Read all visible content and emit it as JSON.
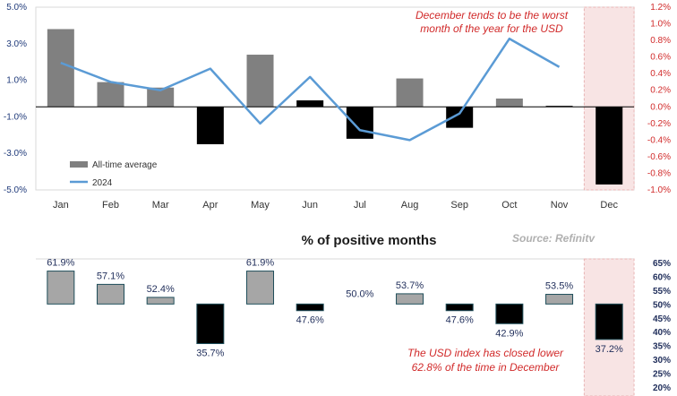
{
  "chart_data": [
    {
      "type": "bar",
      "categories": [
        "Jan",
        "Feb",
        "Mar",
        "Apr",
        "May",
        "Jun",
        "Jul",
        "Aug",
        "Sep",
        "Oct",
        "Nov",
        "Dec"
      ],
      "series": [
        {
          "name": "All-time average",
          "axis": "left",
          "type": "bar",
          "values": [
            3.8,
            0.9,
            0.6,
            -2.5,
            2.4,
            -0.1,
            -2.2,
            1.1,
            -1.6,
            0.0,
            -0.4,
            -4.7
          ]
        },
        {
          "name": "2024",
          "axis": "right",
          "type": "line",
          "values": [
            0.53,
            0.3,
            0.2,
            0.46,
            -0.2,
            0.36,
            -0.28,
            -0.4,
            -0.08,
            0.82,
            0.48,
            null
          ]
        }
      ],
      "y_left": {
        "range": [
          -5.0,
          5.0
        ],
        "ticks": [
          "5.0%",
          "3.0%",
          "1.0%",
          "-1.0%",
          "-3.0%",
          "-5.0%"
        ],
        "tick_values": [
          5,
          3,
          1,
          -1,
          -3,
          -5
        ]
      },
      "y_right": {
        "range": [
          -1.0,
          1.2
        ],
        "ticks": [
          "1.2%",
          "1.0%",
          "0.8%",
          "0.6%",
          "0.4%",
          "0.2%",
          "0.0%",
          "-0.2%",
          "-0.4%",
          "-0.6%",
          "-0.8%",
          "-1.0%"
        ],
        "tick_values": [
          1.2,
          1.0,
          0.8,
          0.6,
          0.4,
          0.2,
          0.0,
          -0.2,
          -0.4,
          -0.6,
          -0.8,
          -1.0
        ]
      },
      "highlight_category": "Dec",
      "annotation": [
        "December tends to be the worst",
        "month of the year for the USD"
      ],
      "legend": {
        "placement": "bottom-left",
        "items": [
          "All-time average",
          "2024"
        ]
      },
      "colors": {
        "positive_bar": "#808080",
        "negative_bar": "#000000",
        "line": "#5b9bd5",
        "highlight": "#f8e4e4",
        "axis_right": "#d12a2a"
      }
    },
    {
      "type": "bar",
      "title": "% of positive months",
      "source": "Source: Refinitv",
      "categories": [
        "Jan",
        "Feb",
        "Mar",
        "Apr",
        "May",
        "Jun",
        "Jul",
        "Aug",
        "Sep",
        "Oct",
        "Nov",
        "Dec"
      ],
      "values": [
        61.9,
        57.1,
        52.4,
        35.7,
        61.9,
        47.6,
        50.0,
        53.7,
        47.6,
        42.9,
        53.5,
        37.2
      ],
      "labels": [
        "61.9%",
        "57.1%",
        "52.4%",
        "35.7%",
        "61.9%",
        "47.6%",
        "50.0%",
        "53.7%",
        "47.6%",
        "42.9%",
        "53.5%",
        "37.2%"
      ],
      "baseline": 50,
      "y_right": {
        "range": [
          20,
          65
        ],
        "ticks": [
          "65%",
          "60%",
          "55%",
          "50%",
          "45%",
          "40%",
          "35%",
          "30%",
          "25%",
          "20%"
        ],
        "tick_values": [
          65,
          60,
          55,
          50,
          45,
          40,
          35,
          30,
          25,
          20
        ]
      },
      "highlight_category": "Dec",
      "annotation": [
        "The USD index has closed lower",
        "62.8% of the time in December"
      ],
      "colors": {
        "positive_bar": "#a6a6a6",
        "negative_bar": "#000000",
        "label": "#1f2d5a",
        "axis_right": "#1f2d5a",
        "highlight": "#f8e4e4"
      }
    }
  ]
}
